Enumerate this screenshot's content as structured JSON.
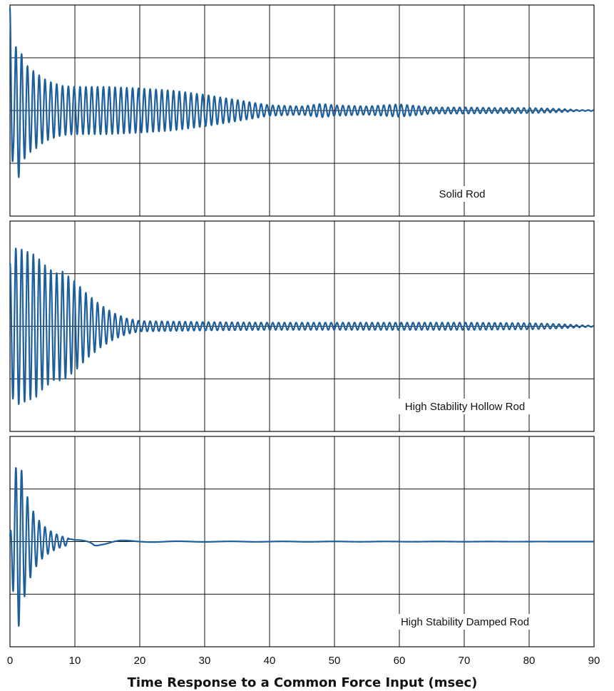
{
  "chart_data": {
    "type": "line",
    "xlabel": "Time Response to a Common Force Input (msec)",
    "xlim": [
      0,
      90
    ],
    "xticks": [
      "0",
      "10",
      "20",
      "30",
      "40",
      "50",
      "60",
      "70",
      "80",
      "90"
    ],
    "grid": true,
    "line_color": "#1c5f9c",
    "panels": [
      {
        "label": "Solid Rod",
        "series": [
          {
            "x": [
              0,
              0.5,
              1.0,
              1.5,
              2.0,
              3.0,
              4.0,
              5.0,
              6.0,
              8.0,
              10.0,
              15.0,
              20.0,
              25.0,
              30.0,
              35.0,
              40.0,
              45.0,
              48.0,
              50.0,
              55.0,
              60.0,
              65.0,
              70.0,
              75.0,
              80.0,
              85.0,
              88.0,
              90.0
            ],
            "amplitude": [
              1.95,
              0.8,
              1.3,
              1.25,
              0.95,
              0.8,
              0.72,
              0.62,
              0.55,
              0.47,
              0.45,
              0.45,
              0.42,
              0.38,
              0.3,
              0.2,
              0.1,
              0.08,
              0.13,
              0.1,
              0.08,
              0.12,
              0.06,
              0.06,
              0.05,
              0.05,
              0.03,
              0.01,
              0.01
            ]
          }
        ]
      },
      {
        "label": "High Stability Hollow Rod",
        "series": [
          {
            "x": [
              0,
              0.5,
              1.0,
              2.0,
              3.0,
              4.0,
              5.0,
              6.0,
              7.0,
              8.0,
              9.0,
              10.0,
              12.0,
              14.0,
              16.0,
              18.0,
              20.0,
              30.0,
              40.0,
              50.0,
              60.0,
              70.0,
              80.0,
              85.0,
              88.0,
              90.0
            ],
            "amplitude": [
              1.2,
              1.4,
              1.5,
              1.45,
              1.4,
              1.35,
              1.2,
              1.1,
              1.0,
              1.05,
              0.95,
              0.85,
              0.6,
              0.4,
              0.25,
              0.15,
              0.1,
              0.08,
              0.07,
              0.07,
              0.07,
              0.07,
              0.06,
              0.04,
              0.02,
              0.01
            ]
          }
        ]
      },
      {
        "label": "High Stability Damped Rod",
        "series": [
          {
            "x": [
              0,
              0.5,
              1.0,
              1.5,
              2.0,
              3.0,
              4.0,
              5.0,
              6.0,
              7.0,
              8.0,
              10.0,
              12.0,
              13.0,
              14.0,
              16.0,
              18.0,
              20.0,
              30.0,
              90.0
            ],
            "amplitude": [
              0.1,
              1.0,
              1.5,
              1.65,
              1.15,
              0.72,
              0.48,
              0.32,
              0.22,
              0.15,
              0.1,
              0.03,
              0.04,
              0.1,
              0.06,
              0.04,
              0.02,
              0.01,
              0.005,
              0.0
            ]
          }
        ]
      }
    ]
  }
}
